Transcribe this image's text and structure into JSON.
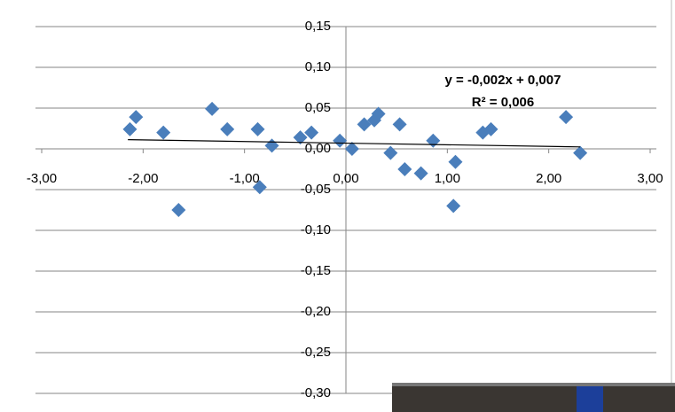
{
  "chart_data": {
    "type": "scatter",
    "color": "#4a7ebb",
    "xlim": [
      -3,
      3
    ],
    "ylim": [
      -0.3,
      0.15
    ],
    "xticks": [
      {
        "value": -3,
        "label": "-3,00"
      },
      {
        "value": -2,
        "label": "-2,00"
      },
      {
        "value": -1,
        "label": "-1,00"
      },
      {
        "value": 0,
        "label": "0,00"
      },
      {
        "value": 1,
        "label": "1,00"
      },
      {
        "value": 2,
        "label": "2,00"
      },
      {
        "value": 3,
        "label": "3,00"
      }
    ],
    "yticks": [
      {
        "value": 0.15,
        "label": "0,15"
      },
      {
        "value": 0.1,
        "label": "0,10"
      },
      {
        "value": 0.05,
        "label": "0,05"
      },
      {
        "value": 0,
        "label": "0,00"
      },
      {
        "value": -0.05,
        "label": "-0,05"
      },
      {
        "value": -0.1,
        "label": "-0,10"
      },
      {
        "value": -0.15,
        "label": "-0,15"
      },
      {
        "value": -0.2,
        "label": "-0,20"
      },
      {
        "value": -0.25,
        "label": "-0,25"
      },
      {
        "value": -0.3,
        "label": "-0,30"
      }
    ],
    "grid": true,
    "x": [
      -2.13,
      -2.07,
      -1.8,
      -1.65,
      -1.32,
      -1.17,
      -0.87,
      -0.85,
      -0.73,
      -0.45,
      -0.34,
      -0.06,
      0.06,
      0.18,
      0.28,
      0.32,
      0.44,
      0.53,
      0.58,
      0.74,
      0.86,
      1.06,
      1.08,
      1.35,
      1.43,
      2.17,
      2.31
    ],
    "values": [
      0.024,
      0.039,
      0.02,
      -0.075,
      0.049,
      0.024,
      0.024,
      -0.047,
      0.004,
      0.014,
      0.02,
      0.01,
      0,
      0.03,
      0.035,
      0.043,
      -0.005,
      0.03,
      -0.025,
      -0.03,
      0.01,
      -0.07,
      -0.016,
      0.02,
      0.024,
      0.039,
      -0.005
    ],
    "trendline": {
      "slope": -0.002,
      "intercept": 0.007,
      "x_start": -2.15,
      "x_end": 2.31,
      "label": "y = -0,002x + 0,007",
      "r2": 0.006,
      "r2_label": "R² = 0,006",
      "color": "#000000"
    }
  }
}
